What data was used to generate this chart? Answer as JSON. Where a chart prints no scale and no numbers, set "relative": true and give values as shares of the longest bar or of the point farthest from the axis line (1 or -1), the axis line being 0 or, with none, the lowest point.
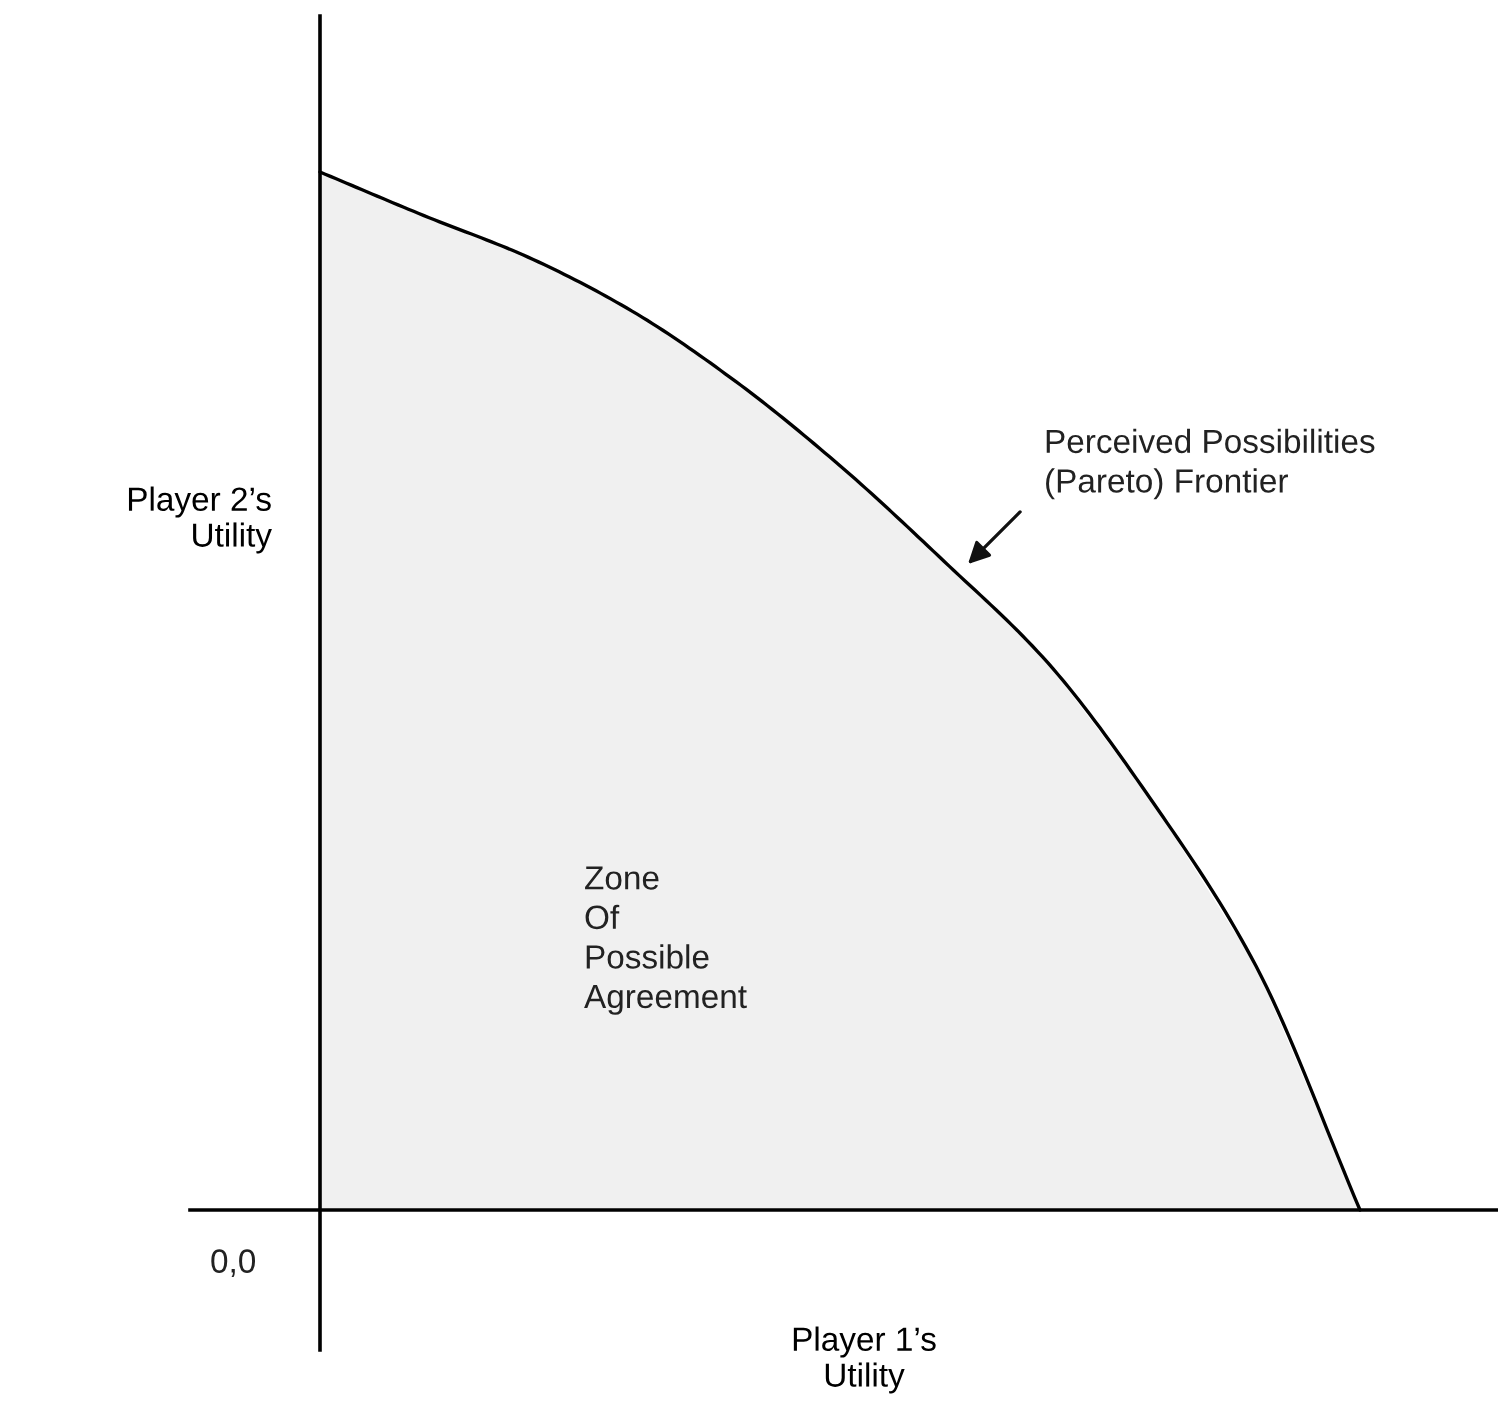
{
  "chart_data": {
    "type": "area",
    "relative": true,
    "xlabel": "Player 1’s\nUtility",
    "ylabel": "Player 2’s\nUtility",
    "categories": [
      null,
      null,
      null,
      null,
      null,
      null,
      null,
      null,
      null,
      null,
      null
    ],
    "series": [
      {
        "color": "#f0f0f0",
        "values": [
          1.0,
          0.958,
          0.918,
          0.866,
          0.798,
          0.717,
          0.625,
          0.527,
          0.394,
          0.235,
          0.0
        ]
      }
    ],
    "annotations": [
      "0,0",
      "Zone\nOf\nPossible\nAgreement",
      "Perceived Possibilities\n(Pareto) Frontier"
    ],
    "legend": false
  }
}
